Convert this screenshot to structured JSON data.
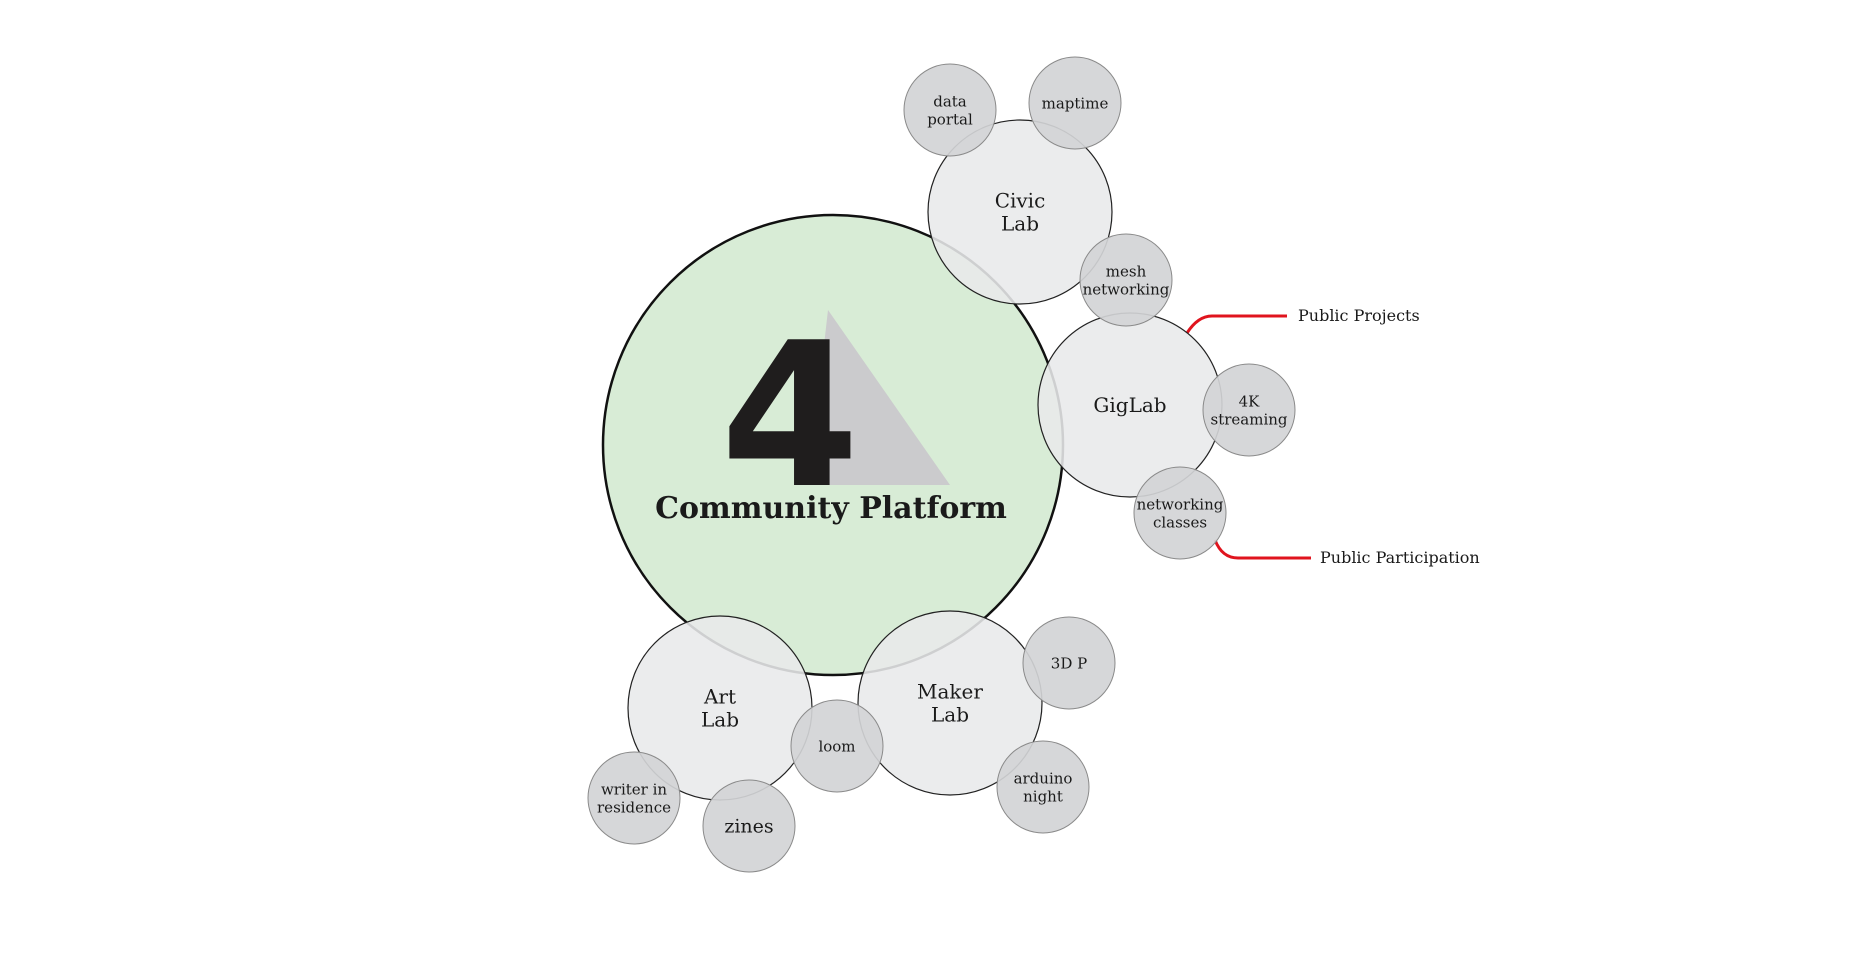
{
  "colors": {
    "background": "#ffffff",
    "main_circle": "#d8ecd6",
    "main_stroke": "#111111",
    "lab_circle": "#e8e9eb",
    "topic_circle": "#d3d4d6",
    "callout_line": "#e0141e",
    "logo": "#1f1d1d",
    "logo_triangle": "#cbcbcd"
  },
  "center": {
    "logo_digit": "4",
    "title": "Community Platform"
  },
  "labs": {
    "civic": [
      "Civic",
      "Lab"
    ],
    "gig": [
      "GigLab"
    ],
    "art": [
      "Art",
      "Lab"
    ],
    "maker": [
      "Maker",
      "Lab"
    ]
  },
  "topics": {
    "data_portal": [
      "data",
      "portal"
    ],
    "maptime": [
      "maptime"
    ],
    "mesh_networking": [
      "mesh",
      "networking"
    ],
    "streaming_4k": [
      "4K",
      "streaming"
    ],
    "networking_classes": [
      "networking",
      "classes"
    ],
    "print_3d": [
      "3D P"
    ],
    "arduino_night": [
      "arduino",
      "night"
    ],
    "loom": [
      "loom"
    ],
    "writer_in_residence": [
      "writer in",
      "residence"
    ],
    "zines": [
      "zines"
    ]
  },
  "callouts": {
    "public_projects": "Public Projects",
    "public_participation": "Public Participation"
  }
}
